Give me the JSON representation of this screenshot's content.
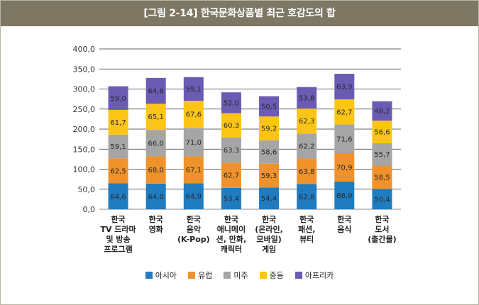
{
  "title": "[그림 2-14] 한국문화상품별 최근 호감도의 합",
  "chart_data": {
    "type": "bar",
    "stacked": true,
    "title": "[그림 2-14] 한국문화상품별 최근 호감도의 합",
    "xlabel": "",
    "ylabel": "",
    "ylim": [
      0,
      400
    ],
    "yticks": [
      0,
      50,
      100,
      150,
      200,
      250,
      300,
      350,
      400
    ],
    "ytick_labels": [
      "0,0",
      "50,0",
      "100,0",
      "150,0",
      "200,0",
      "250,0",
      "300,0",
      "350,0",
      "400,0"
    ],
    "grid": true,
    "legend_position": "bottom",
    "categories": [
      [
        "한국",
        "TV 드라마",
        "및 방송",
        "프로그램"
      ],
      [
        "한국",
        "영화"
      ],
      [
        "한국",
        "음악",
        "(K-Pop)"
      ],
      [
        "한국",
        "애니메이",
        "션, 만화,",
        "캐릭터"
      ],
      [
        "한국",
        "(온라인,",
        "모바일)",
        "게임"
      ],
      [
        "한국",
        "패션,",
        "뷰티"
      ],
      [
        "한국",
        "음식"
      ],
      [
        "한국",
        "도서",
        "(출간물)"
      ]
    ],
    "series": [
      {
        "name": "아시아",
        "color": "#1f7cc1",
        "values": [
          64.6,
          64.0,
          64.9,
          53.4,
          54.4,
          62.8,
          68.9,
          50.4
        ],
        "labels": [
          "64,6",
          "64,0",
          "64,9",
          "53,4",
          "54,4",
          "62,8",
          "68,9",
          "50,4"
        ]
      },
      {
        "name": "유럽",
        "color": "#f0922b",
        "values": [
          62.5,
          68.0,
          67.1,
          62.7,
          59.3,
          63.8,
          70.9,
          58.5
        ],
        "labels": [
          "62,5",
          "68,0",
          "67,1",
          "62,7",
          "59,3",
          "63,8",
          "70,9",
          "58,5"
        ]
      },
      {
        "name": "미주",
        "color": "#a5a5a5",
        "values": [
          59.1,
          66.0,
          71.0,
          63.3,
          58.6,
          62.2,
          71.6,
          55.7
        ],
        "labels": [
          "59,1",
          "66,0",
          "71,0",
          "63,3",
          "58,6",
          "62,2",
          "71,6",
          "55,7"
        ]
      },
      {
        "name": "중동",
        "color": "#fcc515",
        "values": [
          61.7,
          65.1,
          67.6,
          60.3,
          59.2,
          62.3,
          62.7,
          56.6
        ],
        "labels": [
          "61,7",
          "65,1",
          "67,6",
          "60,3",
          "59,2",
          "62,3",
          "62,7",
          "56,6"
        ]
      },
      {
        "name": "아프리카",
        "color": "#6b5bb3",
        "values": [
          59.0,
          64.6,
          59.1,
          52.0,
          50.5,
          53.8,
          63.9,
          48.2
        ],
        "labels": [
          "59,0",
          "64,6",
          "59,1",
          "52,0",
          "50,5",
          "53,8",
          "63,9",
          "48,2"
        ]
      }
    ]
  }
}
